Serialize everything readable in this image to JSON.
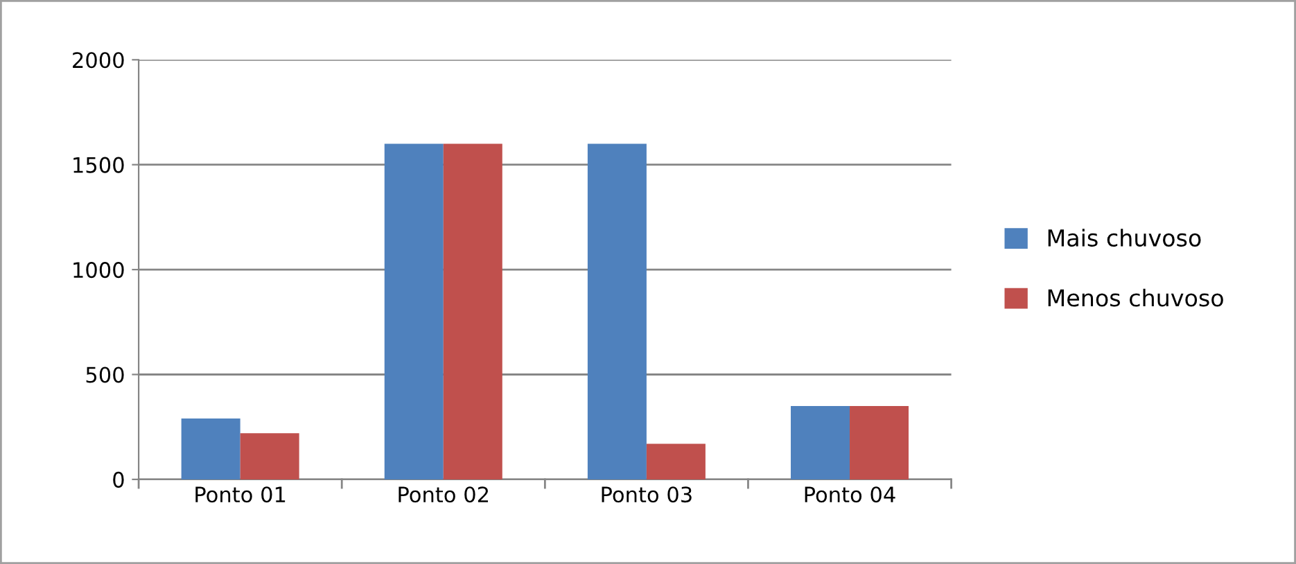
{
  "chart_data": {
    "type": "bar",
    "categories": [
      "Ponto 01",
      "Ponto 02",
      "Ponto 03",
      "Ponto 04"
    ],
    "series": [
      {
        "name": "Mais chuvoso",
        "color": "#4f81bd",
        "values": [
          290,
          1600,
          1600,
          350
        ]
      },
      {
        "name": "Menos chuvoso",
        "color": "#c0504d",
        "values": [
          220,
          1600,
          170,
          350
        ]
      }
    ],
    "ylim": [
      0,
      2000
    ],
    "yticks": [
      0,
      500,
      1000,
      1500,
      2000
    ],
    "grid": "y",
    "legend": "right"
  }
}
